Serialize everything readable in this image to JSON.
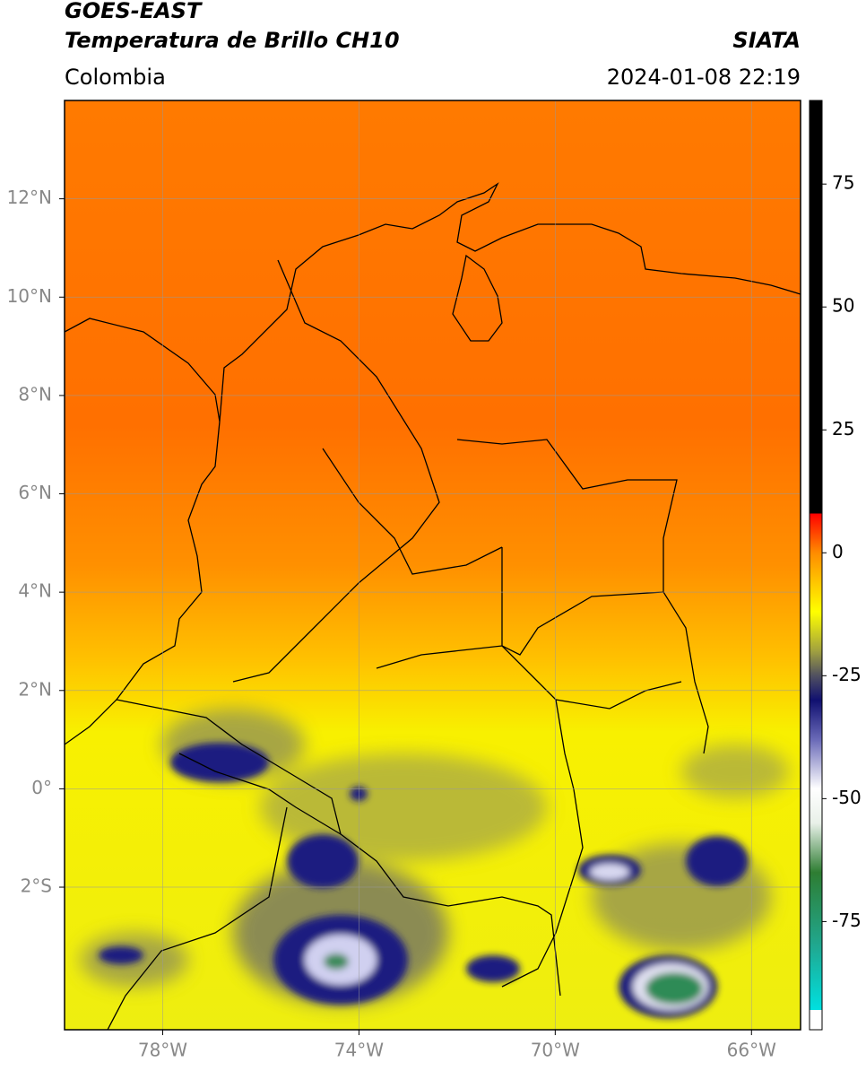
{
  "header": {
    "title": "GOES-EAST",
    "subtitle": "Temperatura de Brillo CH10",
    "region": "Colombia",
    "source": "SIATA",
    "datetime": "2024-01-08 22:19"
  },
  "map": {
    "xlim": [
      -80,
      -65
    ],
    "ylim": [
      -4.9,
      14
    ],
    "xticks": [
      {
        "value": -78,
        "label": "78°W"
      },
      {
        "value": -74,
        "label": "74°W"
      },
      {
        "value": -70,
        "label": "70°W"
      },
      {
        "value": -66,
        "label": "66°W"
      }
    ],
    "yticks": [
      {
        "value": 12,
        "label": "12°N"
      },
      {
        "value": 10,
        "label": "10°N"
      },
      {
        "value": 8,
        "label": "8°N"
      },
      {
        "value": 6,
        "label": "6°N"
      },
      {
        "value": 4,
        "label": "4°N"
      },
      {
        "value": 2,
        "label": "2°N"
      },
      {
        "value": 0,
        "label": "0°"
      },
      {
        "value": -2,
        "label": "2°S"
      }
    ],
    "grid": true
  },
  "colorbar": {
    "lim": [
      -97,
      92
    ],
    "ticks": [
      75,
      50,
      25,
      0,
      -25,
      -50,
      -75
    ],
    "stops": [
      {
        "value": -97,
        "color": "#ffffff"
      },
      {
        "value": -93,
        "color": "#ffffff"
      },
      {
        "value": -93,
        "color": "#00e0e0"
      },
      {
        "value": -80,
        "color": "#20a890"
      },
      {
        "value": -65,
        "color": "#2e7d32"
      },
      {
        "value": -55,
        "color": "#e8f0e8"
      },
      {
        "value": -48,
        "color": "#ffffff"
      },
      {
        "value": -38,
        "color": "#6a6ab8"
      },
      {
        "value": -30,
        "color": "#101070"
      },
      {
        "value": -25,
        "color": "#505060"
      },
      {
        "value": -20,
        "color": "#a0a040"
      },
      {
        "value": -12,
        "color": "#ffff00"
      },
      {
        "value": 0,
        "color": "#ff8c00"
      },
      {
        "value": 8,
        "color": "#ff0000"
      },
      {
        "value": 8,
        "color": "#000000"
      },
      {
        "value": 92,
        "color": "#000000"
      }
    ]
  }
}
